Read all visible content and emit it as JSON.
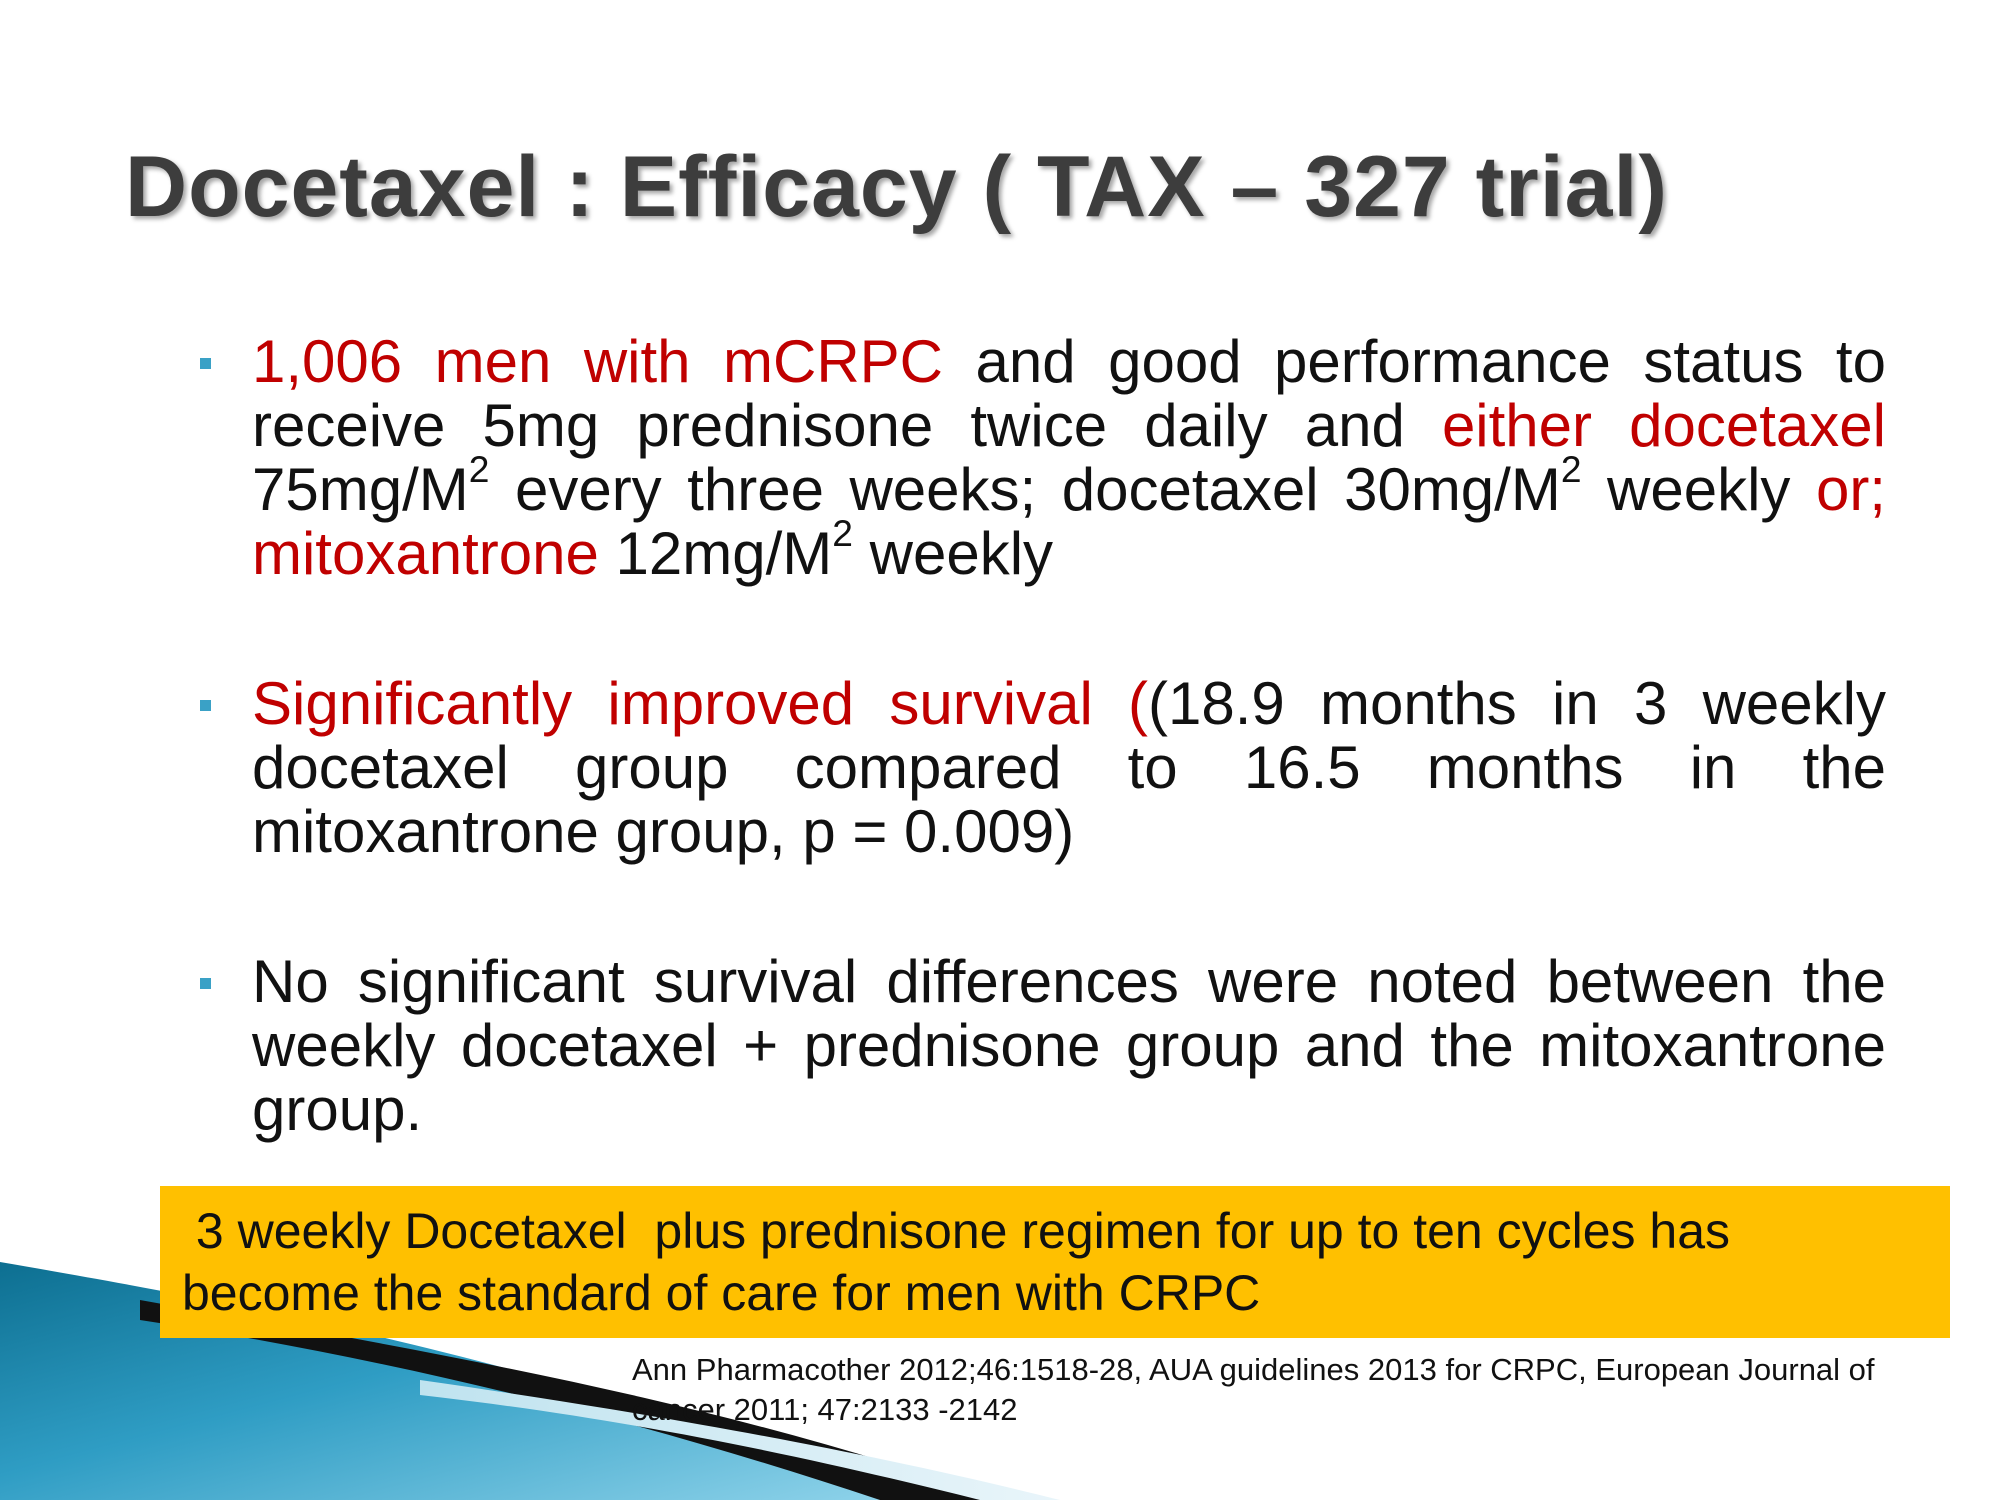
{
  "slide": {
    "title": "Docetaxel : Efficacy  ( TAX – 327 trial)",
    "bullets": [
      {
        "segments": [
          {
            "text": "1,006 men with mCRPC",
            "color": "#c00000"
          },
          {
            "text": " and good performance status to receive 5mg prednisone twice daily and ",
            "color": "#111111"
          },
          {
            "text": "either docetaxel",
            "color": "#c00000"
          },
          {
            "text": " 75mg/M",
            "color": "#111111"
          },
          {
            "text": "2",
            "color": "#111111",
            "sup": true
          },
          {
            "text": " every three weeks; docetaxel 30mg/M",
            "color": "#111111"
          },
          {
            "text": "2",
            "color": "#111111",
            "sup": true
          },
          {
            "text": " weekly ",
            "color": "#111111"
          },
          {
            "text": "or; mitoxantrone",
            "color": "#c00000"
          },
          {
            "text": " 12mg/M",
            "color": "#111111"
          },
          {
            "text": "2",
            "color": "#111111",
            "sup": true
          },
          {
            "text": " weekly",
            "color": "#111111"
          }
        ]
      },
      {
        "segments": [
          {
            "text": "Significantly improved survival (",
            "color": "#c00000"
          },
          {
            "text": "(18.9 months in 3 weekly docetaxel group compared to 16.5 months in the mitoxantrone group, p = 0.009)",
            "color": "#111111"
          }
        ]
      },
      {
        "segments": [
          {
            "text": "No significant survival differences were noted between the weekly docetaxel + prednisone group and the mitoxantrone group.",
            "color": "#111111"
          }
        ]
      }
    ],
    "callout": {
      "lines": [
        " 3 weekly Docetaxel  plus prednisone regimen for up to ten cycles has",
        "become the standard of care for men with CRPC"
      ],
      "background": "#ffc000"
    },
    "citation": {
      "lines": [
        "Ann Pharmacother 2012;46:1518-28, AUA guidelines 2013 for CRPC, European Journal of",
        "cancer 2011; 47:2133 -2142"
      ]
    },
    "accent_color": "#3aa1c6"
  }
}
